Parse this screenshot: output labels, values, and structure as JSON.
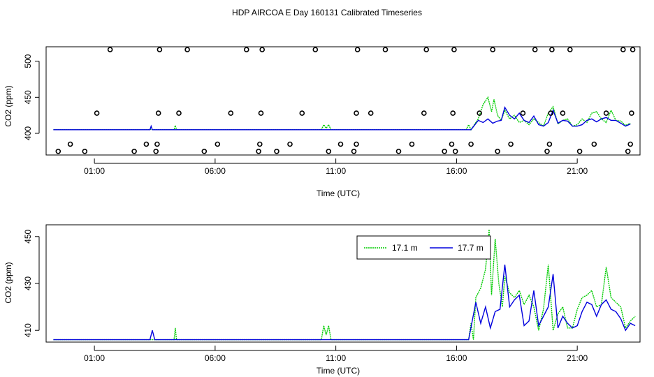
{
  "title": "HDP AIRCOA E  Day 160131  Calibrated Timeseries",
  "colors": {
    "green": "#00cc00",
    "blue": "#0000dd"
  },
  "chart_data": [
    {
      "type": "line",
      "xlabel": "Time (UTC)",
      "ylabel": "CO2 (ppm)",
      "x_unit": "hours UTC",
      "xlim": [
        -1.0,
        23.6
      ],
      "ylim": [
        370,
        520
      ],
      "x_ticks": [
        1,
        6,
        11,
        16,
        21
      ],
      "x_tick_labels": [
        "01:00",
        "06:00",
        "11:00",
        "16:00",
        "21:00"
      ],
      "y_ticks": [
        400,
        450,
        500
      ],
      "y_tick_labels": [
        "400",
        "450",
        "500"
      ],
      "grid": false,
      "series": [
        {
          "color": "#00cc00",
          "x": [
            -0.7,
            3.3,
            3.35,
            3.4,
            4.3,
            4.35,
            4.4,
            10.4,
            10.5,
            10.6,
            10.7,
            10.8,
            16.4,
            16.5,
            16.6,
            16.9,
            17.1,
            17.3,
            17.45,
            17.55,
            17.7,
            17.85,
            18.0,
            18.2,
            18.4,
            18.6,
            18.8,
            19.0,
            19.2,
            19.4,
            19.6,
            19.8,
            20.0,
            20.2,
            20.4,
            20.6,
            20.8,
            21.0,
            21.2,
            21.4,
            21.6,
            21.8,
            22.0,
            22.2,
            22.4,
            22.6,
            22.8,
            23.0,
            23.2
          ],
          "values": [
            405,
            405,
            406,
            405,
            405,
            411,
            405,
            405,
            412,
            407,
            412,
            405,
            405,
            412,
            405,
            420,
            440,
            450,
            430,
            447,
            425,
            418,
            432,
            420,
            425,
            415,
            418,
            412,
            420,
            415,
            410,
            428,
            437,
            413,
            418,
            420,
            410,
            412,
            420,
            415,
            428,
            430,
            420,
            415,
            432,
            418,
            417,
            411,
            414
          ]
        },
        {
          "color": "#0000dd",
          "x": [
            -0.7,
            3.3,
            3.35,
            3.4,
            4.3,
            10.4,
            16.6,
            16.9,
            17.1,
            17.3,
            17.5,
            17.7,
            17.85,
            18.0,
            18.2,
            18.4,
            18.6,
            18.8,
            19.0,
            19.2,
            19.4,
            19.6,
            19.8,
            20.0,
            20.2,
            20.4,
            20.6,
            20.8,
            21.0,
            21.2,
            21.4,
            21.6,
            21.8,
            22.0,
            22.2,
            22.4,
            22.6,
            22.8,
            23.0,
            23.2
          ],
          "values": [
            405,
            405,
            410,
            405,
            405,
            405,
            405,
            418,
            415,
            420,
            414,
            417,
            418,
            436,
            425,
            420,
            428,
            418,
            415,
            424,
            412,
            410,
            415,
            432,
            414,
            418,
            417,
            410,
            410,
            412,
            418,
            420,
            416,
            420,
            422,
            418,
            418,
            414,
            410,
            413
          ]
        }
      ],
      "scatter": {
        "x": [
          -0.5,
          0.0,
          0.6,
          1.1,
          1.65,
          2.65,
          3.15,
          3.55,
          3.6,
          3.65,
          3.7,
          4.5,
          4.85,
          5.55,
          6.1,
          6.65,
          7.3,
          7.8,
          7.85,
          7.9,
          7.95,
          8.55,
          9.1,
          9.6,
          10.15,
          10.7,
          11.2,
          11.75,
          11.85,
          11.85,
          11.9,
          12.45,
          13.05,
          13.6,
          14.15,
          14.65,
          14.75,
          15.5,
          15.8,
          15.85,
          15.9,
          15.95,
          16.6,
          16.95,
          17.5,
          17.7,
          18.25,
          18.75,
          19.25,
          19.75,
          19.85,
          19.9,
          19.95,
          20.4,
          20.7,
          21.1,
          21.7,
          22.2,
          22.9,
          23.1,
          23.2,
          23.25,
          23.3
        ],
        "values": [
          375,
          385,
          375,
          428,
          516,
          375,
          385,
          375,
          385,
          428,
          516,
          428,
          516,
          375,
          385,
          428,
          516,
          375,
          385,
          428,
          516,
          375,
          385,
          428,
          516,
          375,
          385,
          375,
          385,
          428,
          516,
          428,
          516,
          375,
          385,
          428,
          516,
          375,
          385,
          428,
          516,
          375,
          385,
          428,
          516,
          375,
          385,
          428,
          516,
          375,
          385,
          428,
          516,
          428,
          516,
          375,
          385,
          428,
          516,
          375,
          385,
          428,
          516
        ]
      }
    },
    {
      "type": "line",
      "xlabel": "Time (UTC)",
      "ylabel": "CO2 (ppm)",
      "x_unit": "hours UTC",
      "xlim": [
        -1.0,
        23.6
      ],
      "ylim": [
        405,
        455
      ],
      "x_ticks": [
        1,
        6,
        11,
        16,
        21
      ],
      "x_tick_labels": [
        "01:00",
        "06:00",
        "11:00",
        "16:00",
        "21:00"
      ],
      "y_ticks": [
        410,
        430,
        450
      ],
      "y_tick_labels": [
        "410",
        "430",
        "450"
      ],
      "grid": false,
      "legend_position": "top-right",
      "series": [
        {
          "name": "17.1 m",
          "color": "#00cc00",
          "x": [
            -0.7,
            3.3,
            3.4,
            3.5,
            4.3,
            4.35,
            4.4,
            10.4,
            10.5,
            10.6,
            10.7,
            10.8,
            16.5,
            16.6,
            16.7,
            16.8,
            17.0,
            17.2,
            17.35,
            17.45,
            17.6,
            17.75,
            17.9,
            18.0,
            18.2,
            18.4,
            18.6,
            18.8,
            19.0,
            19.2,
            19.4,
            19.6,
            19.8,
            20.0,
            20.2,
            20.4,
            20.6,
            20.8,
            21.0,
            21.2,
            21.4,
            21.6,
            21.8,
            22.0,
            22.2,
            22.4,
            22.6,
            22.8,
            23.0,
            23.2,
            23.4
          ],
          "values": [
            406,
            406,
            406,
            406,
            406,
            411,
            406,
            406,
            412,
            408,
            412,
            406,
            406,
            413,
            406,
            424,
            428,
            436,
            453,
            425,
            449,
            430,
            420,
            433,
            426,
            424,
            427,
            421,
            425,
            420,
            410,
            419,
            438,
            410,
            417,
            420,
            411,
            411,
            419,
            424,
            425,
            427,
            420,
            421,
            437,
            424,
            422,
            420,
            411,
            414,
            416
          ]
        },
        {
          "name": "17.7 m",
          "color": "#0000dd",
          "x": [
            -0.7,
            3.3,
            3.4,
            3.5,
            4.3,
            10.4,
            16.5,
            16.8,
            17.0,
            17.2,
            17.4,
            17.6,
            17.8,
            18.0,
            18.2,
            18.4,
            18.6,
            18.8,
            19.0,
            19.2,
            19.4,
            19.6,
            19.8,
            20.0,
            20.2,
            20.4,
            20.6,
            20.8,
            21.0,
            21.2,
            21.4,
            21.6,
            21.8,
            22.0,
            22.2,
            22.4,
            22.6,
            22.8,
            23.0,
            23.2,
            23.4
          ],
          "values": [
            406,
            406,
            410,
            406,
            406,
            406,
            406,
            422,
            413,
            420,
            411,
            418,
            419,
            438,
            420,
            423,
            425,
            412,
            414,
            427,
            412,
            416,
            420,
            434,
            411,
            416,
            413,
            411,
            412,
            418,
            422,
            421,
            416,
            421,
            423,
            419,
            418,
            415,
            410,
            413,
            412
          ]
        }
      ]
    }
  ]
}
